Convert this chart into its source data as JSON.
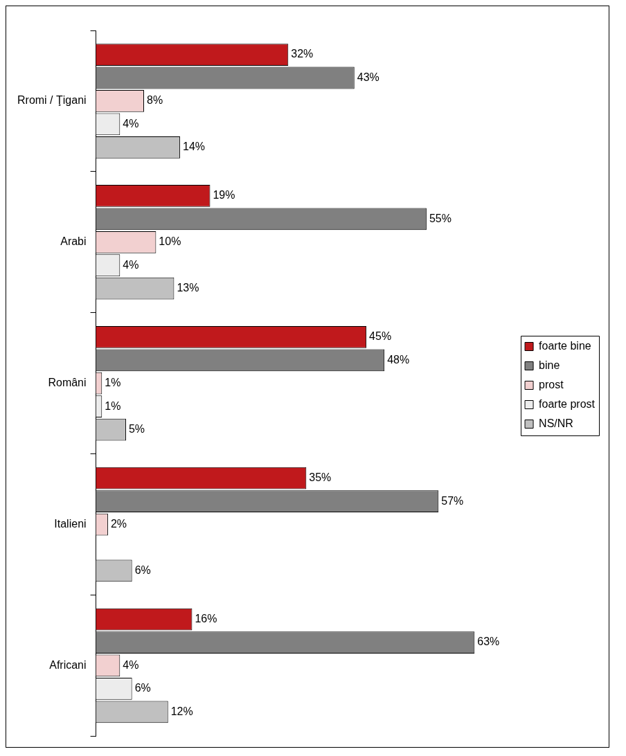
{
  "chart_data": {
    "type": "bar",
    "orientation": "horizontal",
    "categories": [
      "Rromi / Ţigani",
      "Arabi",
      "Români",
      "Italieni",
      "Africani"
    ],
    "series": [
      {
        "name": "foarte bine",
        "color": "#c0191c",
        "values": [
          32,
          19,
          45,
          35,
          16
        ],
        "value_labels": [
          "32%",
          "19%",
          "45%",
          "35%",
          "16%"
        ]
      },
      {
        "name": "bine",
        "color": "#808080",
        "values": [
          43,
          55,
          48,
          57,
          63
        ],
        "value_labels": [
          "43%",
          "55%",
          "48%",
          "57%",
          "63%"
        ]
      },
      {
        "name": "prost",
        "color": "#f2d0d0",
        "values": [
          8,
          10,
          1,
          2,
          4
        ],
        "value_labels": [
          "8%",
          "10%",
          "1%",
          "2%",
          "4%"
        ]
      },
      {
        "name": "foarte prost",
        "color": "#ececec",
        "values": [
          4,
          4,
          1,
          null,
          6
        ],
        "value_labels": [
          "4%",
          "4%",
          "1%",
          null,
          "6%"
        ]
      },
      {
        "name": "NS/NR",
        "color": "#c0c0c0",
        "values": [
          14,
          13,
          5,
          6,
          12
        ],
        "value_labels": [
          "14%",
          "13%",
          "5%",
          "6%",
          "12%"
        ]
      }
    ],
    "tick_labels": "y",
    "grid": false,
    "legend": "right"
  }
}
